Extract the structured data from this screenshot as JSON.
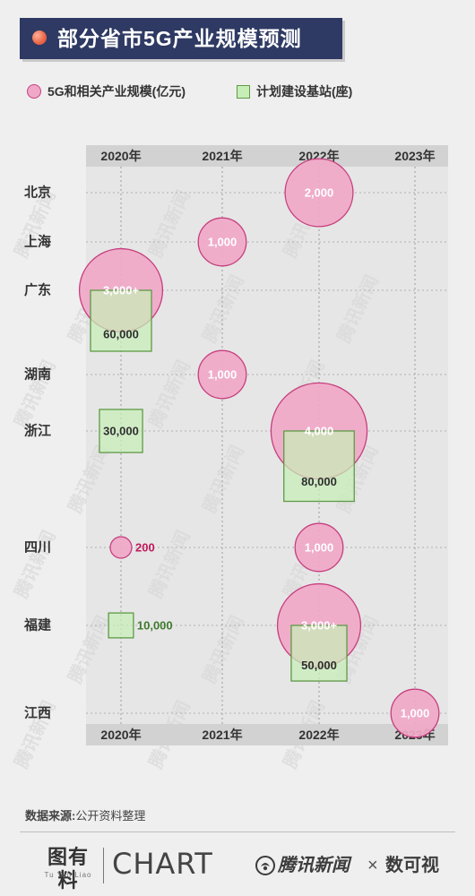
{
  "title": "部分省市5G产业规模预测",
  "legend": {
    "circle_label": "5G和相关产业规模(亿元)",
    "square_label": "计划建设基站(座)"
  },
  "source": {
    "label": "数据来源:",
    "text": "公开资料整理"
  },
  "footer": {
    "logo1": "图有料",
    "logo1_sub": "Tu You Liao",
    "logo2": "CHART",
    "logo3": "腾讯新闻",
    "times": "×",
    "logo4": "数可视"
  },
  "colors": {
    "circle_fill": "#f0a8c8",
    "circle_stroke": "#c63f7e",
    "square_fill": "#c8eeb8",
    "square_stroke": "#5e9a46",
    "circle_label_outside": "#c2185b",
    "square_label_outside": "#3f7a2c"
  },
  "chart_data": {
    "type": "bubble-matrix",
    "years": [
      "2020年",
      "2021年",
      "2022年",
      "2023年"
    ],
    "regions": [
      "北京",
      "上海",
      "广东",
      "湖南",
      "浙江",
      "四川",
      "福建",
      "江西"
    ],
    "industry_scale": [
      {
        "region": "北京",
        "year": "2022年",
        "value": 2000,
        "label": "2,000"
      },
      {
        "region": "上海",
        "year": "2021年",
        "value": 1000,
        "label": "1,000"
      },
      {
        "region": "广东",
        "year": "2020年",
        "value": 3000,
        "label": "3,000+"
      },
      {
        "region": "湖南",
        "year": "2021年",
        "value": 1000,
        "label": "1,000"
      },
      {
        "region": "浙江",
        "year": "2022年",
        "value": 4000,
        "label": "4,000"
      },
      {
        "region": "四川",
        "year": "2020年",
        "value": 200,
        "label": "200"
      },
      {
        "region": "四川",
        "year": "2022年",
        "value": 1000,
        "label": "1,000"
      },
      {
        "region": "福建",
        "year": "2022年",
        "value": 3000,
        "label": "3,000+"
      },
      {
        "region": "江西",
        "year": "2023年",
        "value": 1000,
        "label": "1,000"
      }
    ],
    "base_stations": [
      {
        "region": "广东",
        "year": "2020年",
        "value": 60000,
        "label": "60,000"
      },
      {
        "region": "浙江",
        "year": "2020年",
        "value": 30000,
        "label": "30,000"
      },
      {
        "region": "浙江",
        "year": "2022年",
        "value": 80000,
        "label": "80,000"
      },
      {
        "region": "福建",
        "year": "2020年",
        "value": 10000,
        "label": "10,000"
      },
      {
        "region": "福建",
        "year": "2022年",
        "value": 50000,
        "label": "50,000"
      }
    ]
  }
}
